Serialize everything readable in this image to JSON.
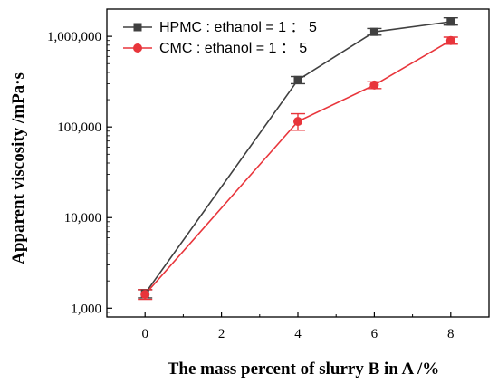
{
  "chart_data": {
    "type": "line",
    "xlabel": "The mass percent of slurry B in A /%",
    "ylabel": "Apparent viscosity /mPa·s",
    "x_ticks": [
      0,
      2,
      4,
      6,
      8
    ],
    "x_tick_labels": [
      "0",
      "2",
      "4",
      "6",
      "8"
    ],
    "xlim": [
      -1,
      9
    ],
    "y_scale": "log",
    "ylim": [
      800,
      2000000
    ],
    "y_ticks": [
      1000,
      10000,
      100000,
      1000000
    ],
    "y_tick_labels": [
      "1,000",
      "10,000",
      "100,000",
      "1,000,000"
    ],
    "legend_position": "top-left",
    "series": [
      {
        "name": "HPMC : ethanol = 1 ： 5",
        "color": "#404040",
        "marker": "square",
        "x": [
          0,
          4,
          6,
          8
        ],
        "y": [
          1450,
          330000,
          1120000,
          1450000
        ],
        "err_low": [
          1300,
          300000,
          1030000,
          1330000
        ],
        "err_high": [
          1600,
          360000,
          1220000,
          1600000
        ]
      },
      {
        "name": "CMC : ethanol = 1 ： 5",
        "color": "#e8353b",
        "marker": "circle",
        "x": [
          0,
          4,
          6,
          8
        ],
        "y": [
          1420,
          115000,
          290000,
          900000
        ],
        "err_low": [
          1250,
          92000,
          265000,
          820000
        ],
        "err_high": [
          1600,
          140000,
          315000,
          980000
        ]
      }
    ]
  }
}
